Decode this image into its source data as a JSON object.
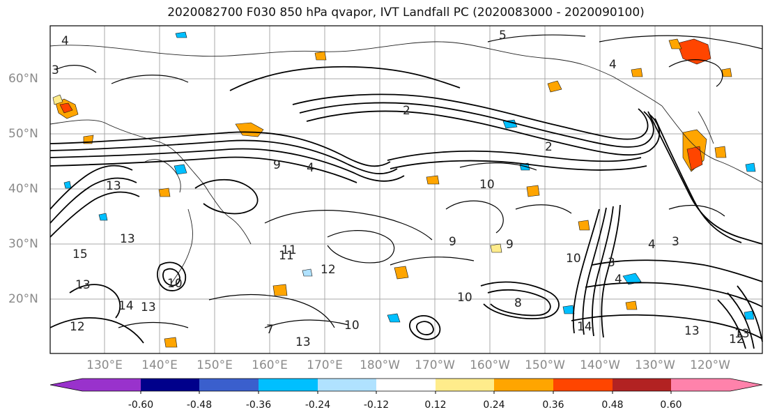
{
  "title": "2020082700 F030 850 hPa qvapor, IVT Landfall PC (2020083000 - 2020090100)",
  "map": {
    "lat_labels": [
      "60°N",
      "50°N",
      "40°N",
      "30°N",
      "20°N"
    ],
    "lon_labels": [
      "130°E",
      "140°E",
      "150°E",
      "160°E",
      "170°E",
      "180°W",
      "170°W",
      "160°W",
      "150°W",
      "140°W",
      "130°W",
      "120°W"
    ],
    "contour_labels": [
      "4",
      "3",
      "5",
      "4",
      "2",
      "2",
      "4",
      "9",
      "13",
      "13",
      "15",
      "13",
      "12",
      "14",
      "13",
      "10",
      "10",
      "11",
      "12",
      "9",
      "10",
      "8",
      "10",
      "9",
      "3",
      "4",
      "3",
      "4",
      "14",
      "13",
      "12",
      "13",
      "10",
      "7",
      "11",
      "13"
    ]
  },
  "colorbar": {
    "tick_labels": [
      "-0.60",
      "-0.48",
      "-0.36",
      "-0.24",
      "-0.12",
      "0.12",
      "0.24",
      "0.36",
      "0.48",
      "0.60"
    ],
    "colors": [
      "#9932cc",
      "#00008b",
      "#3a5fcd",
      "#00bfff",
      "#b0e2ff",
      "#ffffff",
      "#ffec8b",
      "#ffa500",
      "#ff4500",
      "#b22222",
      "#ff82ab"
    ]
  }
}
